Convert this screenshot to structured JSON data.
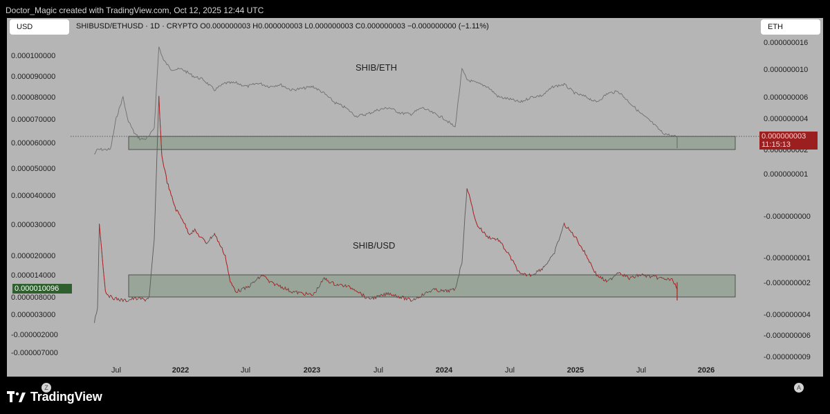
{
  "header": {
    "text": "Doctor_Magic created with TradingView.com, Oct 12, 2025 12:44 UTC"
  },
  "toolbar": {
    "left_currency": "USD",
    "right_currency": "ETH",
    "symbol_info": "SHIBUSD/ETHUSD · 1D · CRYPTO  O0.000000003  H0.000000003  L0.000000003  C0.000000003  −0.000000000 (−1.11%)"
  },
  "corner_buttons": {
    "left": "Z",
    "right": "A"
  },
  "badges": {
    "left_value": "0.000010096",
    "right_value": "0.000000003",
    "right_countdown": "11:15:13"
  },
  "footer": {
    "brand": "TradingView"
  },
  "colors": {
    "background": "#b5b5b5",
    "shib_eth_line": "#6e6e6e",
    "shib_usd_up": "#595959",
    "shib_usd_down": "#b81c1c",
    "zone_fill": "#8fa08f",
    "left_badge": "#2f5e2f",
    "right_badge": "#9b1f1f"
  },
  "chart_data": {
    "type": "line",
    "annotations": [
      "SHIB/ETH",
      "SHIB/USD"
    ],
    "x_ticks": [
      "Jul",
      "2022",
      "Jul",
      "2023",
      "Jul",
      "2024",
      "Jul",
      "2025",
      "Jul",
      "2026"
    ],
    "x_ticks_bold": [
      false,
      true,
      false,
      true,
      false,
      true,
      false,
      true,
      false,
      true
    ],
    "left_axis_ticks": [
      "0.000100000",
      "0.000090000",
      "0.000080000",
      "0.000070000",
      "0.000060000",
      "0.000050000",
      "0.000040000",
      "0.000030000",
      "0.000020000",
      "0.000014000",
      "0.000008000",
      "0.000003000",
      "-0.000002000",
      "-0.000007000"
    ],
    "right_axis_ticks": [
      "0.000000016",
      "0.000000010",
      "0.000000006",
      "0.000000004",
      "0.000000002",
      "0.000000001",
      "-0.000000000",
      "-0.000000001",
      "-0.000000002",
      "-0.000000004",
      "-0.000000006",
      "-0.000000009"
    ],
    "series": [
      {
        "name": "SHIB/ETH",
        "x": [
          "2021-05-01",
          "2021-05-10",
          "2021-05-20",
          "2021-06-01",
          "2021-06-15",
          "2021-07-01",
          "2021-07-20",
          "2021-08-01",
          "2021-08-20",
          "2021-09-05",
          "2021-09-20",
          "2021-10-01",
          "2021-10-15",
          "2021-10-28",
          "2021-11-10",
          "2021-12-01",
          "2022-01-01",
          "2022-02-01",
          "2022-03-01",
          "2022-04-01",
          "2022-05-01",
          "2022-06-01",
          "2022-07-01",
          "2022-08-01",
          "2022-09-01",
          "2022-10-01",
          "2022-11-01",
          "2022-12-01",
          "2023-01-01",
          "2023-02-01",
          "2023-03-01",
          "2023-04-01",
          "2023-05-01",
          "2023-06-01",
          "2023-07-01",
          "2023-08-01",
          "2023-09-01",
          "2023-10-01",
          "2023-11-01",
          "2023-12-01",
          "2024-01-01",
          "2024-02-01",
          "2024-02-20",
          "2024-03-05",
          "2024-04-01",
          "2024-05-01",
          "2024-06-01",
          "2024-07-01",
          "2024-08-01",
          "2024-09-01",
          "2024-10-01",
          "2024-11-01",
          "2024-12-01",
          "2025-01-01",
          "2025-02-01",
          "2025-03-01",
          "2025-04-01",
          "2025-05-01",
          "2025-06-01",
          "2025-07-01",
          "2025-08-01",
          "2025-09-01",
          "2025-10-01",
          "2025-10-12"
        ],
        "y": [
          1.8e-09,
          2e-09,
          2e-09,
          2e-09,
          2e-09,
          4e-09,
          6e-09,
          4e-09,
          3.2e-09,
          2.8e-09,
          2.8e-09,
          3e-09,
          3.5e-09,
          1.5e-08,
          1.2e-08,
          1e-08,
          1e-08,
          9e-09,
          8.5e-09,
          7e-09,
          8e-09,
          8e-09,
          7.5e-09,
          8e-09,
          7.5e-09,
          7.8e-09,
          7e-09,
          7.2e-09,
          7.5e-09,
          6.5e-09,
          5.5e-09,
          5e-09,
          4.2e-09,
          4.4e-09,
          4.8e-09,
          5e-09,
          4.5e-09,
          4.4e-09,
          5e-09,
          4.5e-09,
          4e-09,
          3.5e-09,
          1e-08,
          8.5e-09,
          8e-09,
          7.5e-09,
          6e-09,
          5.8e-09,
          5.5e-09,
          6e-09,
          6.2e-09,
          7.5e-09,
          7.8e-09,
          6.5e-09,
          6e-09,
          5.5e-09,
          6.5e-09,
          6.8e-09,
          5.5e-09,
          4.5e-09,
          3.8e-09,
          3.2e-09,
          3e-09,
          3e-09
        ]
      },
      {
        "name": "SHIB/USD",
        "x": [
          "2021-05-01",
          "2021-05-10",
          "2021-05-15",
          "2021-06-01",
          "2021-06-15",
          "2021-07-01",
          "2021-07-20",
          "2021-08-01",
          "2021-08-15",
          "2021-09-05",
          "2021-09-20",
          "2021-10-01",
          "2021-10-15",
          "2021-10-28",
          "2021-11-05",
          "2021-11-20",
          "2021-12-01",
          "2021-12-15",
          "2022-01-01",
          "2022-01-20",
          "2022-02-05",
          "2022-02-20",
          "2022-03-10",
          "2022-04-01",
          "2022-05-01",
          "2022-05-15",
          "2022-06-01",
          "2022-07-01",
          "2022-08-01",
          "2022-08-15",
          "2022-09-01",
          "2022-10-01",
          "2022-11-01",
          "2022-12-01",
          "2023-01-01",
          "2023-02-01",
          "2023-03-01",
          "2023-04-01",
          "2023-05-01",
          "2023-06-01",
          "2023-07-01",
          "2023-08-01",
          "2023-09-01",
          "2023-10-01",
          "2023-11-01",
          "2023-12-01",
          "2024-01-01",
          "2024-02-01",
          "2024-02-20",
          "2024-03-05",
          "2024-04-01",
          "2024-05-01",
          "2024-06-01",
          "2024-07-01",
          "2024-08-01",
          "2024-09-01",
          "2024-10-01",
          "2024-11-01",
          "2024-12-01",
          "2025-01-01",
          "2025-02-01",
          "2025-03-01",
          "2025-04-01",
          "2025-05-01",
          "2025-06-01",
          "2025-07-01",
          "2025-08-01",
          "2025-09-01",
          "2025-10-01",
          "2025-10-12"
        ],
        "y": [
          1e-06,
          5e-06,
          3e-05,
          9.5e-06,
          8e-06,
          7.5e-06,
          7e-06,
          7e-06,
          7.5e-06,
          7.5e-06,
          7.2e-06,
          8e-06,
          2.5e-05,
          8e-05,
          5.5e-05,
          4.5e-05,
          4e-05,
          3.5e-05,
          3.2e-05,
          2.7e-05,
          2.8e-05,
          2.6e-05,
          2.4e-05,
          2.7e-05,
          2e-05,
          1.2e-05,
          9.5e-06,
          1.05e-05,
          1.3e-05,
          1.4e-05,
          1.2e-05,
          1.1e-05,
          9.5e-06,
          9e-06,
          8.5e-06,
          1.3e-05,
          1.15e-05,
          1.1e-05,
          1e-05,
          7.5e-06,
          8e-06,
          9e-06,
          8e-06,
          7e-06,
          8.5e-06,
          1e-05,
          9.5e-06,
          1e-05,
          1.8e-05,
          4.3e-05,
          3e-05,
          2.6e-05,
          2.5e-05,
          2e-05,
          1.4e-05,
          1.4e-05,
          1.6e-05,
          2e-05,
          3e-05,
          2.6e-05,
          2e-05,
          1.4e-05,
          1.2e-05,
          1.5e-05,
          1.3e-05,
          1.4e-05,
          1.35e-05,
          1.3e-05,
          1.25e-05,
          1.0096e-05
        ]
      }
    ],
    "support_zones": [
      {
        "axis": "right",
        "ylim": [
          "0.000000002",
          "0.000000003"
        ]
      },
      {
        "axis": "left",
        "ylim": [
          "0.000008000",
          "0.000014000"
        ]
      }
    ]
  }
}
